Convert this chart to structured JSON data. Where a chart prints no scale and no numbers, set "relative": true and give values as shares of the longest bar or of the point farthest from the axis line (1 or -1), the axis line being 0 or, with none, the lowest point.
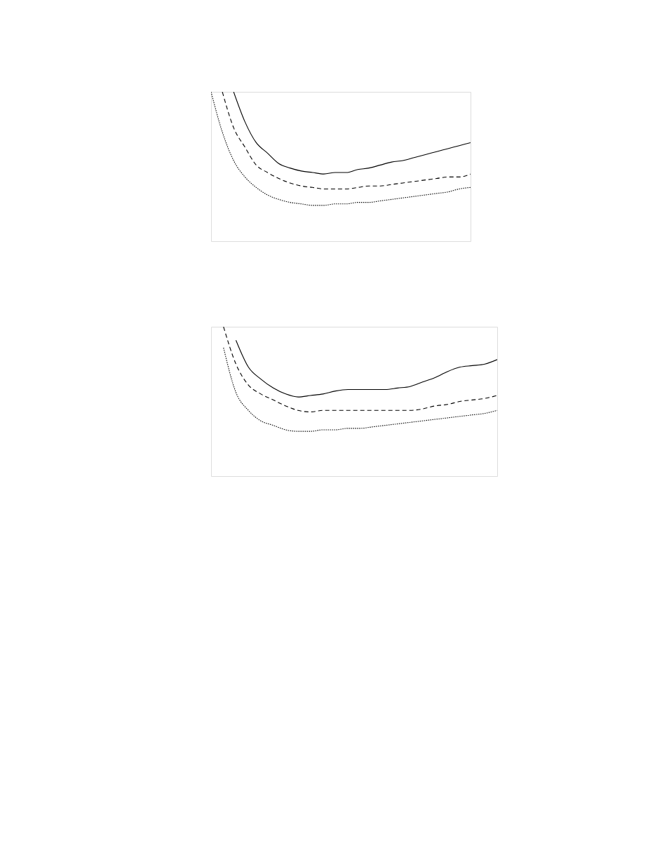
{
  "chart_data": [
    {
      "type": "line",
      "relative": true,
      "categories": [
        null,
        null,
        null,
        null,
        null,
        null,
        null,
        null,
        null,
        null,
        null,
        null,
        null,
        null,
        null,
        null,
        null,
        null,
        null,
        null,
        null,
        null,
        null,
        null
      ],
      "series": [
        {
          "color": "#000000",
          "line_style": "solid",
          "values": [
            null,
            null,
            1.0,
            0.8,
            0.66,
            0.59,
            0.52,
            0.49,
            0.47,
            0.46,
            0.45,
            0.46,
            0.46,
            0.48,
            0.49,
            0.51,
            0.53,
            0.54,
            0.56,
            0.58,
            0.6,
            0.62,
            0.64,
            0.66
          ]
        },
        {
          "color": "#000000",
          "line_style": "dashed",
          "values": [
            null,
            1.0,
            0.76,
            0.63,
            0.51,
            0.46,
            0.42,
            0.39,
            0.37,
            0.36,
            0.35,
            0.35,
            0.35,
            0.36,
            0.37,
            0.37,
            0.38,
            0.39,
            0.4,
            0.41,
            0.42,
            0.43,
            0.43,
            0.45
          ]
        },
        {
          "color": "#000000",
          "line_style": "dotted",
          "values": [
            1.0,
            0.73,
            0.54,
            0.43,
            0.36,
            0.31,
            0.28,
            0.26,
            0.25,
            0.24,
            0.24,
            0.25,
            0.25,
            0.26,
            0.26,
            0.27,
            0.28,
            0.29,
            0.3,
            0.31,
            0.32,
            0.33,
            0.35,
            0.36
          ]
        }
      ]
    },
    {
      "type": "line",
      "relative": true,
      "categories": [
        null,
        null,
        null,
        null,
        null,
        null,
        null,
        null,
        null,
        null,
        null,
        null,
        null,
        null,
        null,
        null,
        null,
        null,
        null,
        null,
        null,
        null,
        null,
        null
      ],
      "series": [
        {
          "color": "#000000",
          "line_style": "solid",
          "values": [
            null,
            null,
            0.91,
            0.73,
            0.65,
            0.59,
            0.55,
            0.53,
            0.54,
            0.55,
            0.57,
            0.58,
            0.58,
            0.58,
            0.58,
            0.59,
            0.6,
            0.63,
            0.66,
            0.7,
            0.73,
            0.74,
            0.75,
            0.78
          ]
        },
        {
          "color": "#000000",
          "line_style": "dashed",
          "values": [
            null,
            1.0,
            0.75,
            0.61,
            0.55,
            0.51,
            0.47,
            0.44,
            0.43,
            0.44,
            0.44,
            0.44,
            0.44,
            0.44,
            0.44,
            0.44,
            0.44,
            0.45,
            0.47,
            0.48,
            0.5,
            0.51,
            0.52,
            0.54
          ]
        },
        {
          "color": "#000000",
          "line_style": "dotted",
          "values": [
            null,
            0.86,
            0.56,
            0.44,
            0.37,
            0.34,
            0.31,
            0.3,
            0.3,
            0.31,
            0.31,
            0.32,
            0.32,
            0.33,
            0.34,
            0.35,
            0.36,
            0.37,
            0.38,
            0.39,
            0.4,
            0.41,
            0.42,
            0.44
          ]
        }
      ]
    }
  ]
}
